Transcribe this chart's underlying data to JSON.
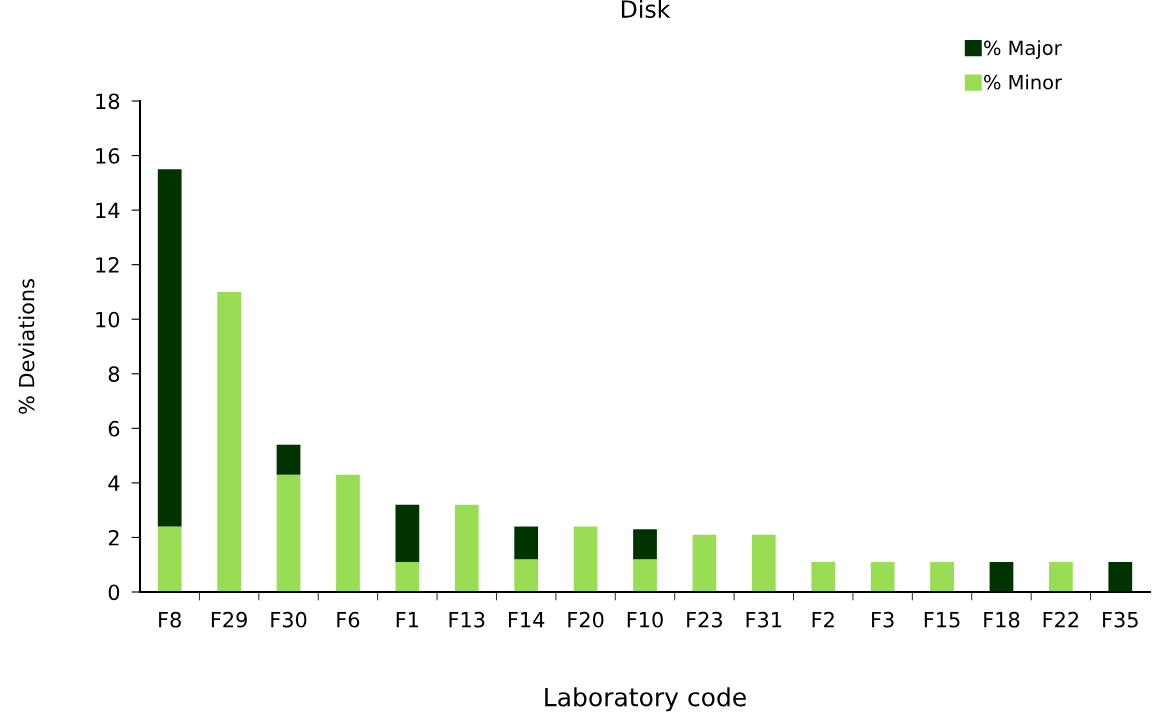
{
  "chart_data": {
    "type": "bar",
    "title": "Disk",
    "xlabel": "Laboratory code",
    "ylabel": "% Deviations",
    "categories": [
      "F8",
      "F29",
      "F30",
      "F6",
      "F1",
      "F13",
      "F14",
      "F20",
      "F10",
      "F23",
      "F31",
      "F2",
      "F3",
      "F15",
      "F18",
      "F22",
      "F35"
    ],
    "stacked": true,
    "series": [
      {
        "name": "% Minor",
        "color": "#99dd55",
        "values": [
          2.4,
          11.0,
          4.3,
          4.3,
          1.1,
          3.2,
          1.2,
          2.4,
          1.2,
          2.1,
          2.1,
          1.1,
          1.1,
          1.1,
          null,
          1.1,
          null
        ]
      },
      {
        "name": "% Major",
        "color": "#003300",
        "values": [
          13.1,
          null,
          1.1,
          null,
          2.1,
          null,
          1.2,
          null,
          1.1,
          null,
          null,
          null,
          null,
          null,
          1.1,
          null,
          1.1
        ]
      }
    ],
    "ylim": [
      0,
      18
    ],
    "yticks": [
      0,
      2,
      4,
      6,
      8,
      10,
      12,
      14,
      16,
      18
    ],
    "grid": false,
    "legend": "top right"
  }
}
